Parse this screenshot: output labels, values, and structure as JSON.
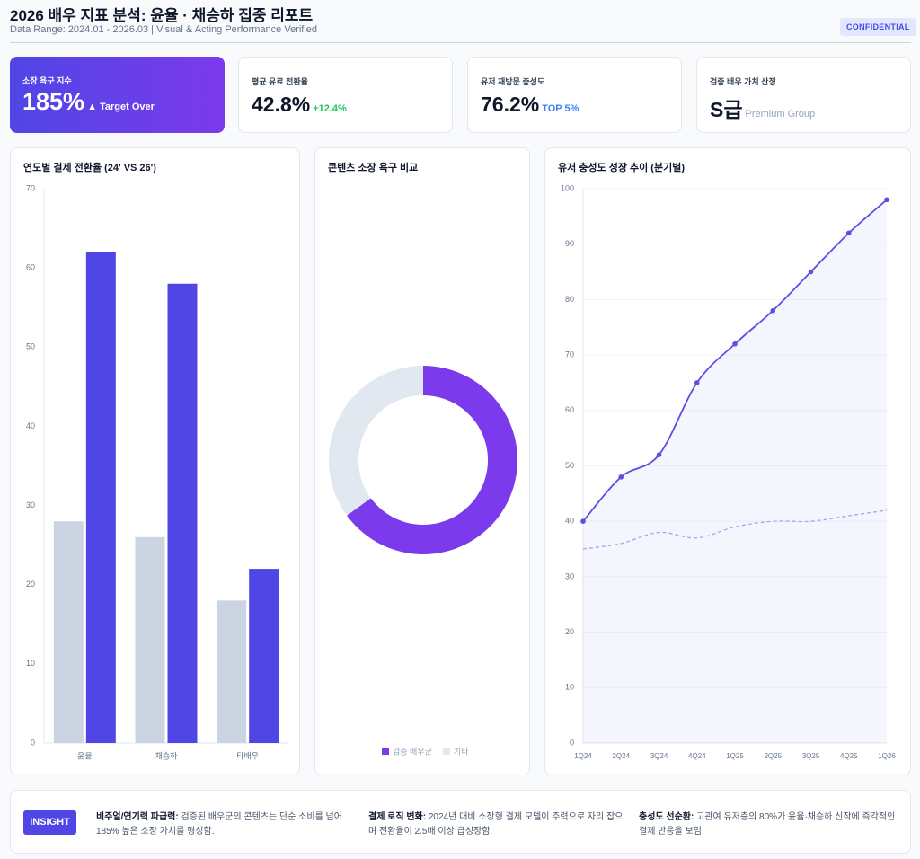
{
  "header": {
    "title": "2026 배우 지표 분석: 윤율 · 채승하 집중 리포트",
    "subtitle": "Data Range: 2024.01 - 2026.03 | Visual & Acting Performance Verified",
    "badge": "CONFIDENTIAL"
  },
  "kpis": [
    {
      "label": "소장 욕구 지수",
      "value": "185%",
      "delta": "▲ Target Over"
    },
    {
      "label": "평균 유료 전환율",
      "value": "42.8%",
      "delta": "+12.4%"
    },
    {
      "label": "유저 재방문 충성도",
      "value": "76.2%",
      "delta": "TOP 5%"
    },
    {
      "label": "검증 배우 가치 산정",
      "value": "S급",
      "delta": "Premium Group"
    }
  ],
  "chart_data": [
    {
      "type": "bar",
      "title": "연도별 결제 전환율 (24' VS 26')",
      "categories": [
        "윤율",
        "채승하",
        "타배우"
      ],
      "series": [
        {
          "color": "#cbd5e1",
          "values": [
            28,
            26,
            18
          ]
        },
        {
          "color": "#4f46e5",
          "values": [
            62,
            58,
            22
          ]
        }
      ],
      "ylim": [
        0,
        70
      ],
      "yticks": [
        0,
        10,
        20,
        30,
        40,
        50,
        60,
        70
      ],
      "grid": false
    },
    {
      "type": "doughnut",
      "title": "콘텐츠 소장 욕구 비교",
      "categories": [
        "검증 배우군",
        "기타"
      ],
      "values": [
        65,
        35
      ],
      "colors": [
        "#7c3aed",
        "#e2e8f0"
      ]
    },
    {
      "type": "line",
      "title": "유저 충성도 성장 추이 (분기별)",
      "categories": [
        "1Q24",
        "2Q24",
        "3Q24",
        "4Q24",
        "1Q25",
        "2Q25",
        "3Q25",
        "4Q25",
        "1Q26"
      ],
      "series": [
        {
          "color": "#5b4fe0",
          "values": [
            40,
            48,
            52,
            65,
            72,
            78,
            85,
            92,
            98
          ],
          "markers": true,
          "area": true
        },
        {
          "color": "#a9a3ee",
          "values": [
            35,
            36,
            38,
            37,
            39,
            40,
            40,
            41,
            42
          ],
          "dashed": true
        }
      ],
      "ylim": [
        0,
        100
      ],
      "yticks": [
        0,
        10,
        20,
        30,
        40,
        50,
        60,
        70,
        80,
        90,
        100
      ],
      "grid": true
    }
  ],
  "insight": {
    "label": "INSIGHT",
    "items": [
      {
        "title": "비주얼/연기력 파급력:",
        "text": "검증된 배우군의 콘텐츠는 단순 소비를 넘어 185% 높은 소장 가치를 형성함."
      },
      {
        "title": "결제 로직 변화:",
        "text": "2024년 대비 소장형 결제 모델이 주력으로 자리 잡으며 전환율이 2.5배 이상 급성장함."
      },
      {
        "title": "충성도 선순환:",
        "text": "고관여 유저층의 80%가 윤율·채승하 신작에 즉각적인 결제 반응을 보임."
      }
    ]
  }
}
